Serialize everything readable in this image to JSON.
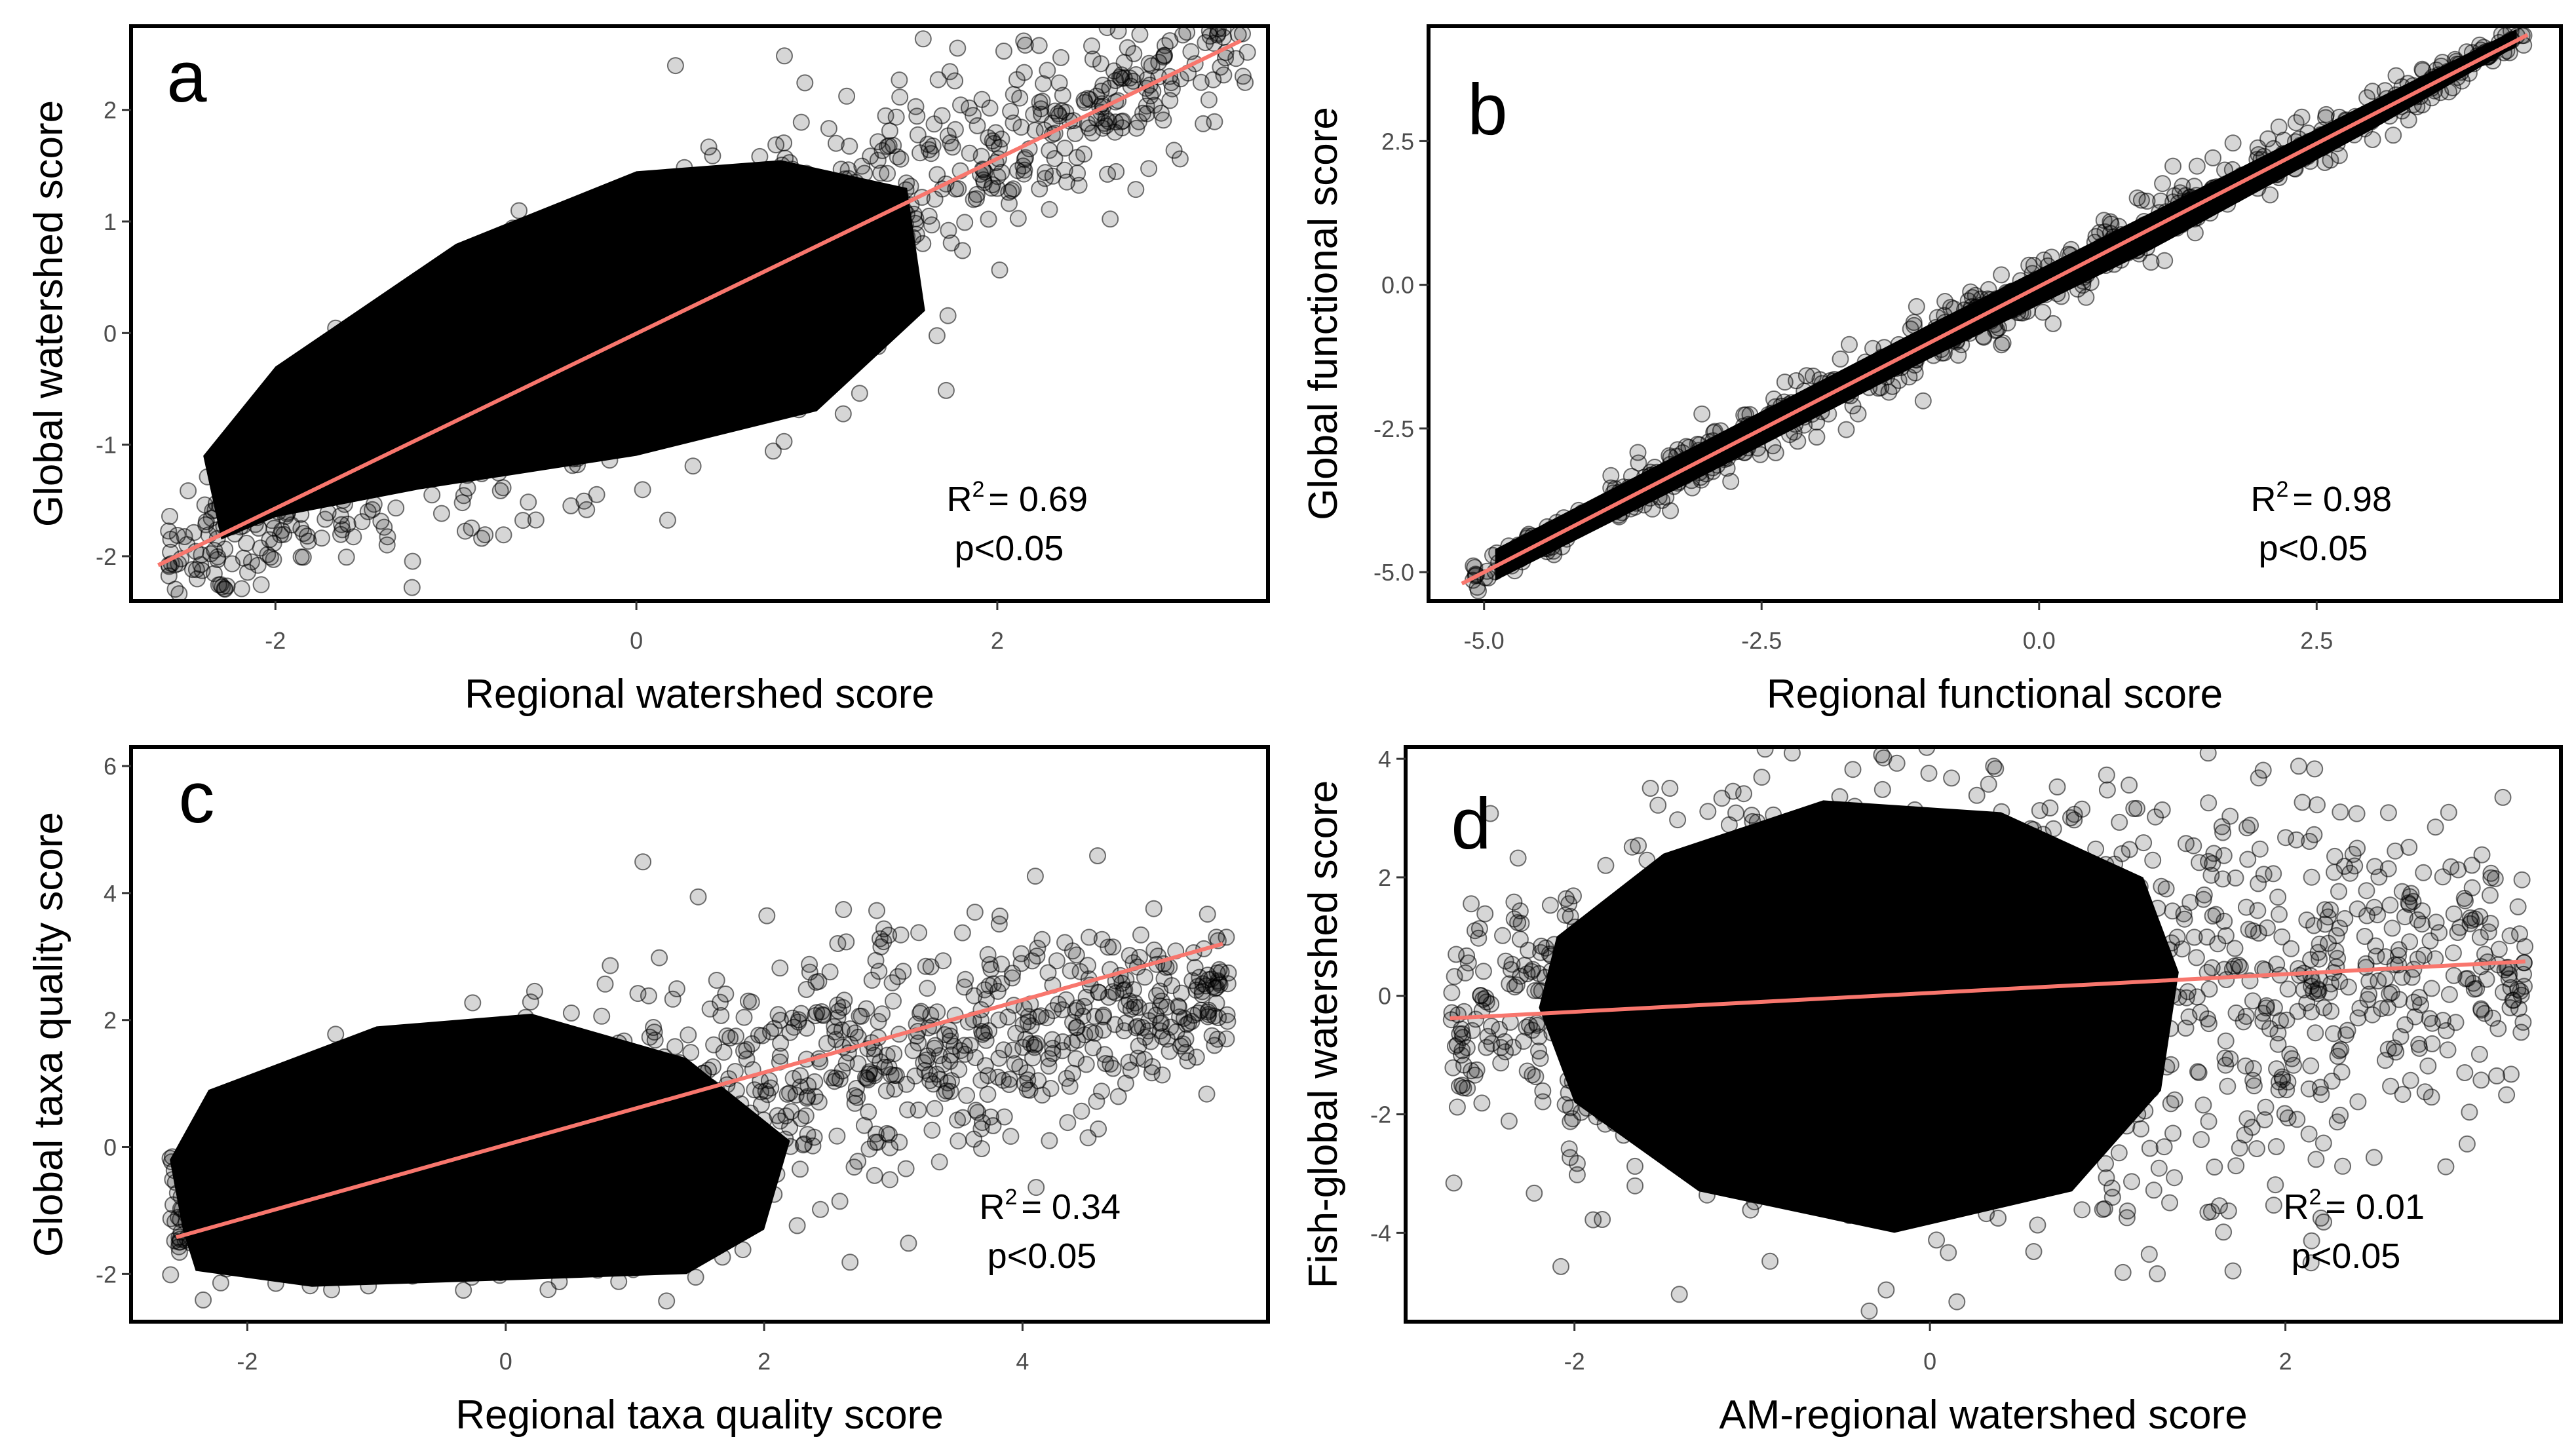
{
  "figure": {
    "fit_color": "#f8766d",
    "point_color": "#000000"
  },
  "chart_data": [
    {
      "panel": "a",
      "type": "scatter",
      "title": "",
      "xlabel": "Regional watershed score",
      "ylabel": "Global watershed score",
      "xlim": [
        -2.8,
        3.5
      ],
      "ylim": [
        -2.4,
        2.75
      ],
      "xticks": [
        -2,
        0,
        2
      ],
      "yticks": [
        -2,
        -1,
        0,
        1,
        2
      ],
      "xtick_labels": [
        "-2",
        "0",
        "2"
      ],
      "ytick_labels": [
        "-2",
        "-1",
        "0",
        "1",
        "2"
      ],
      "regression": {
        "x": [
          -2.65,
          3.35
        ],
        "y": [
          -2.08,
          2.62
        ]
      },
      "r2_text": "= 0.69",
      "p_text": "p<0.05",
      "cloud": {
        "slope": 0.8,
        "spread": 0.45,
        "x_min": -2.6,
        "x_max": 3.4,
        "n": 900
      },
      "dense_core": [
        [
          -2.3,
          -1.85
        ],
        [
          -2.0,
          -1.65
        ],
        [
          -1.2,
          -1.4
        ],
        [
          0.0,
          -1.1
        ],
        [
          1.0,
          -0.7
        ],
        [
          1.6,
          0.2
        ],
        [
          1.5,
          1.3
        ],
        [
          0.8,
          1.55
        ],
        [
          0.0,
          1.45
        ],
        [
          -1.0,
          0.8
        ],
        [
          -2.0,
          -0.3
        ],
        [
          -2.4,
          -1.1
        ]
      ]
    },
    {
      "panel": "b",
      "type": "scatter",
      "title": "",
      "xlabel": "Regional functional score",
      "ylabel": "Global functional score",
      "xlim": [
        -5.5,
        4.7
      ],
      "ylim": [
        -5.5,
        4.5
      ],
      "xticks": [
        -5.0,
        -2.5,
        0.0,
        2.5
      ],
      "yticks": [
        -5.0,
        -2.5,
        0.0,
        2.5
      ],
      "xtick_labels": [
        "-5.0",
        "-2.5",
        "0.0",
        "2.5"
      ],
      "ytick_labels": [
        "-5.0",
        "-2.5",
        "0.0",
        "2.5"
      ],
      "regression": {
        "x": [
          -5.2,
          4.4
        ],
        "y": [
          -5.2,
          4.35
        ]
      },
      "r2_text": "= 0.98",
      "p_text": "p<0.05",
      "cloud": {
        "slope": 1.0,
        "spread": 0.22,
        "x_min": -5.1,
        "x_max": 4.4,
        "n": 700
      },
      "dense_core": [
        [
          -4.9,
          -5.15
        ],
        [
          -3.0,
          -3.3
        ],
        [
          -1.0,
          -1.3
        ],
        [
          1.0,
          0.6
        ],
        [
          3.0,
          2.7
        ],
        [
          4.3,
          4.15
        ],
        [
          4.3,
          4.45
        ],
        [
          3.0,
          3.2
        ],
        [
          1.0,
          1.25
        ],
        [
          -1.0,
          -0.7
        ],
        [
          -3.0,
          -2.7
        ],
        [
          -4.9,
          -4.6
        ]
      ]
    },
    {
      "panel": "c",
      "type": "scatter",
      "title": "",
      "xlabel": "Regional taxa quality score",
      "ylabel": "Global taxa quality score",
      "xlim": [
        -2.9,
        5.9
      ],
      "ylim": [
        -2.75,
        6.3
      ],
      "xticks": [
        -2,
        0,
        2,
        4
      ],
      "yticks": [
        -2,
        0,
        2,
        4,
        6
      ],
      "xtick_labels": [
        "-2",
        "0",
        "2",
        "4"
      ],
      "ytick_labels": [
        "-2",
        "0",
        "2",
        "4",
        "6"
      ],
      "regression": {
        "x": [
          -2.55,
          5.55
        ],
        "y": [
          -1.42,
          3.2
        ]
      },
      "r2_text": "= 0.34",
      "p_text": "p<0.05",
      "cloud": {
        "slope": 0.45,
        "spread": 0.85,
        "x_min": -2.6,
        "x_max": 5.6,
        "n": 1100
      },
      "dense_core": [
        [
          -2.5,
          -1.3
        ],
        [
          -2.4,
          -1.95
        ],
        [
          -1.5,
          -2.2
        ],
        [
          0.0,
          -2.1
        ],
        [
          1.4,
          -2.0
        ],
        [
          2.0,
          -1.3
        ],
        [
          2.2,
          0.1
        ],
        [
          1.4,
          1.4
        ],
        [
          0.2,
          2.1
        ],
        [
          -1.0,
          1.9
        ],
        [
          -2.3,
          0.9
        ],
        [
          -2.6,
          -0.2
        ]
      ]
    },
    {
      "panel": "d",
      "type": "scatter",
      "title": "",
      "xlabel": "AM-regional watershed score",
      "ylabel": "Fish-global watershed score",
      "xlim": [
        -2.95,
        3.55
      ],
      "ylim": [
        -5.5,
        4.2
      ],
      "xticks": [
        -2,
        0,
        2
      ],
      "yticks": [
        -4,
        -2,
        0,
        2,
        4
      ],
      "xtick_labels": [
        "-2",
        "0",
        "2"
      ],
      "ytick_labels": [
        "-4",
        "-2",
        "0",
        "2",
        "4"
      ],
      "regression": {
        "x": [
          -2.7,
          3.35
        ],
        "y": [
          -0.38,
          0.58
        ]
      },
      "r2_text": "= 0.01",
      "p_text": "p<0.05",
      "cloud": {
        "slope": 0.1,
        "spread": 1.6,
        "x_min": -2.7,
        "x_max": 3.35,
        "n": 1200
      },
      "dense_core": [
        [
          -2.2,
          -0.2
        ],
        [
          -2.0,
          -1.8
        ],
        [
          -1.3,
          -3.3
        ],
        [
          -0.2,
          -4.0
        ],
        [
          0.8,
          -3.3
        ],
        [
          1.3,
          -1.6
        ],
        [
          1.4,
          0.4
        ],
        [
          1.2,
          2.0
        ],
        [
          0.4,
          3.1
        ],
        [
          -0.6,
          3.3
        ],
        [
          -1.5,
          2.4
        ],
        [
          -2.1,
          1.0
        ]
      ]
    }
  ]
}
